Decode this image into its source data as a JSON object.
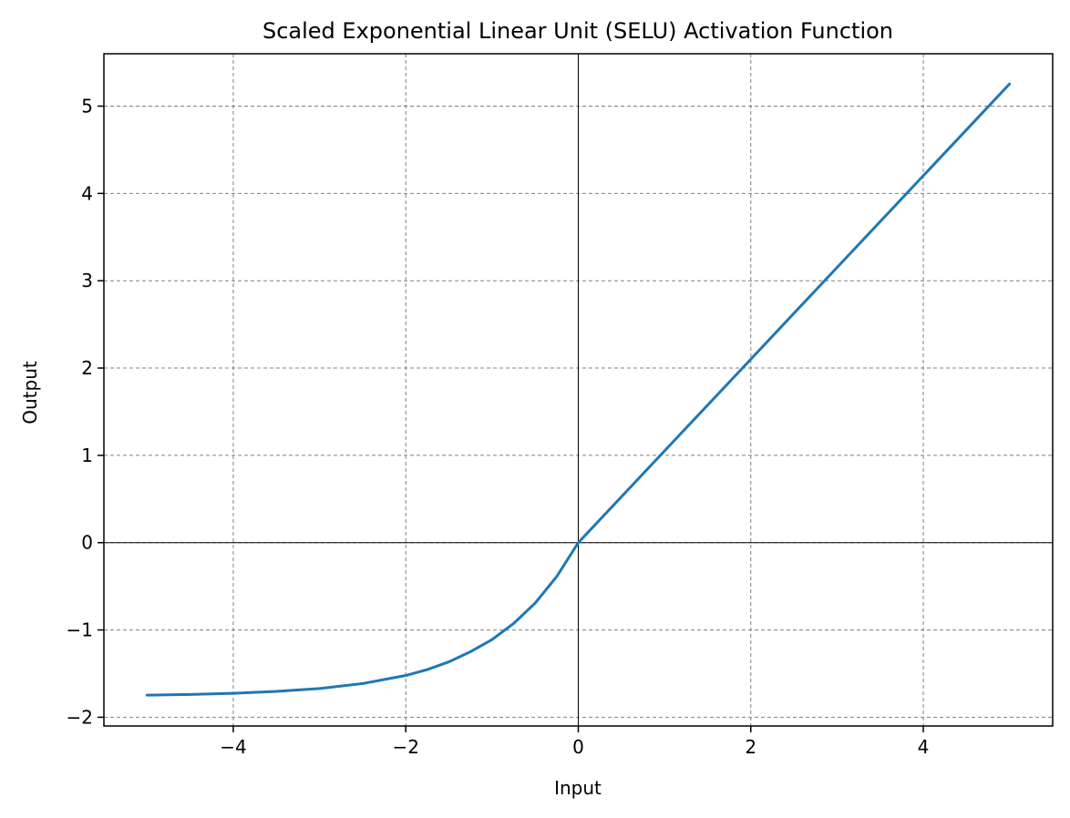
{
  "chart_data": {
    "type": "line",
    "title": "Scaled Exponential Linear Unit (SELU) Activation Function",
    "xlabel": "Input",
    "ylabel": "Output",
    "xlim": [
      -5.5,
      5.5
    ],
    "ylim": [
      -2.1,
      5.6
    ],
    "xticks": [
      -4,
      -2,
      0,
      2,
      4
    ],
    "yticks": [
      -2,
      -1,
      0,
      1,
      2,
      3,
      4,
      5
    ],
    "xtick_labels": [
      "−4",
      "−2",
      "0",
      "2",
      "4"
    ],
    "ytick_labels": [
      "−2",
      "−1",
      "0",
      "1",
      "2",
      "3",
      "4",
      "5"
    ],
    "grid": true,
    "zero_lines": true,
    "series": [
      {
        "color": "#1f77b4",
        "x": [
          -5.0,
          -4.5,
          -4.0,
          -3.5,
          -3.0,
          -2.5,
          -2.0,
          -1.75,
          -1.5,
          -1.25,
          -1.0,
          -0.75,
          -0.5,
          -0.25,
          0.0,
          1.0,
          2.0,
          3.0,
          4.0,
          5.0
        ],
        "y": [
          -1.746,
          -1.739,
          -1.726,
          -1.704,
          -1.671,
          -1.614,
          -1.521,
          -1.454,
          -1.365,
          -1.249,
          -1.111,
          -0.926,
          -0.692,
          -0.388,
          0.0,
          1.051,
          2.101,
          3.152,
          4.203,
          5.254
        ]
      }
    ]
  }
}
